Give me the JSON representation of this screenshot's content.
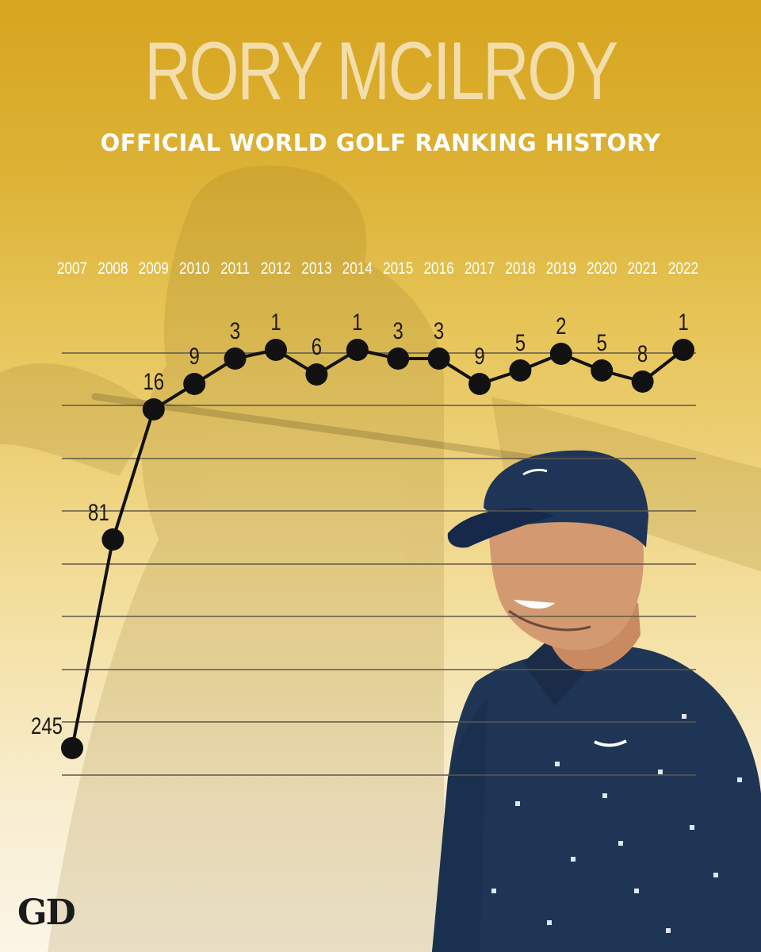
{
  "header": {
    "title": "RORY MCILROY",
    "subtitle": "OFFICIAL WORLD GOLF RANKING HISTORY"
  },
  "logo_text": "GD",
  "colors": {
    "background_top": "#d7a51f",
    "background_bottom": "#fbf5e6",
    "line": "#111111",
    "gridline": "#5f584a"
  },
  "chart_data": {
    "type": "line",
    "title": "OFFICIAL WORLD GOLF RANKING HISTORY",
    "categories": [
      "2007",
      "2008",
      "2009",
      "2010",
      "2011",
      "2012",
      "2013",
      "2014",
      "2015",
      "2016",
      "2017",
      "2018",
      "2019",
      "2020",
      "2021",
      "2022"
    ],
    "series": [
      {
        "values": [
          245,
          81,
          16,
          9,
          3,
          1,
          6,
          1,
          3,
          3,
          9,
          5,
          2,
          5,
          8,
          1
        ]
      }
    ],
    "y_scale": "non-linear (rank, 1 at top)",
    "y_inverted": true,
    "grid": true,
    "legend": "none",
    "data_labels": true
  }
}
